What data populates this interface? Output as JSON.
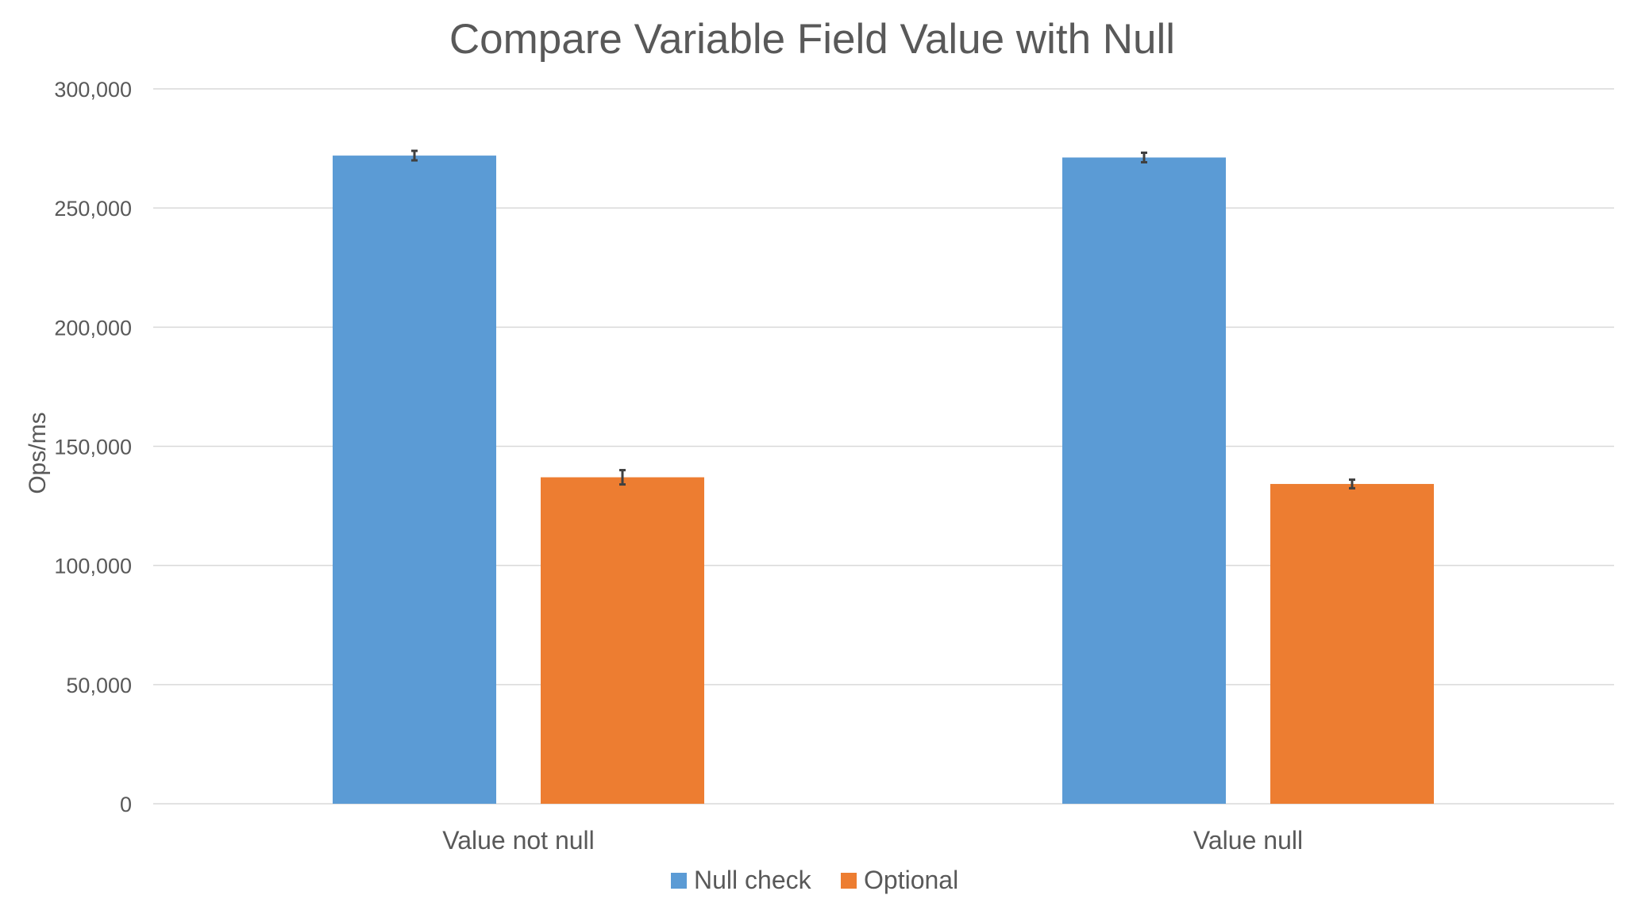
{
  "chart_data": {
    "type": "bar",
    "title": "Compare Variable Field Value with Null",
    "xlabel": "",
    "ylabel": "Ops/ms",
    "categories": [
      "Value not null",
      "Value null"
    ],
    "series": [
      {
        "name": "Null check",
        "color": "#5b9bd5",
        "values": [
          272000,
          271200
        ],
        "errors": [
          2000,
          2000
        ]
      },
      {
        "name": "Optional",
        "color": "#ed7d31",
        "values": [
          137000,
          134200
        ],
        "errors": [
          3000,
          1800
        ]
      }
    ],
    "ylim": [
      0,
      300000
    ],
    "yticks": [
      0,
      50000,
      100000,
      150000,
      200000,
      250000,
      300000
    ],
    "ytick_labels": [
      "0",
      "50,000",
      "100,000",
      "150,000",
      "200,000",
      "250,000",
      "300,000"
    ],
    "grid": true,
    "legend_position": "bottom"
  }
}
